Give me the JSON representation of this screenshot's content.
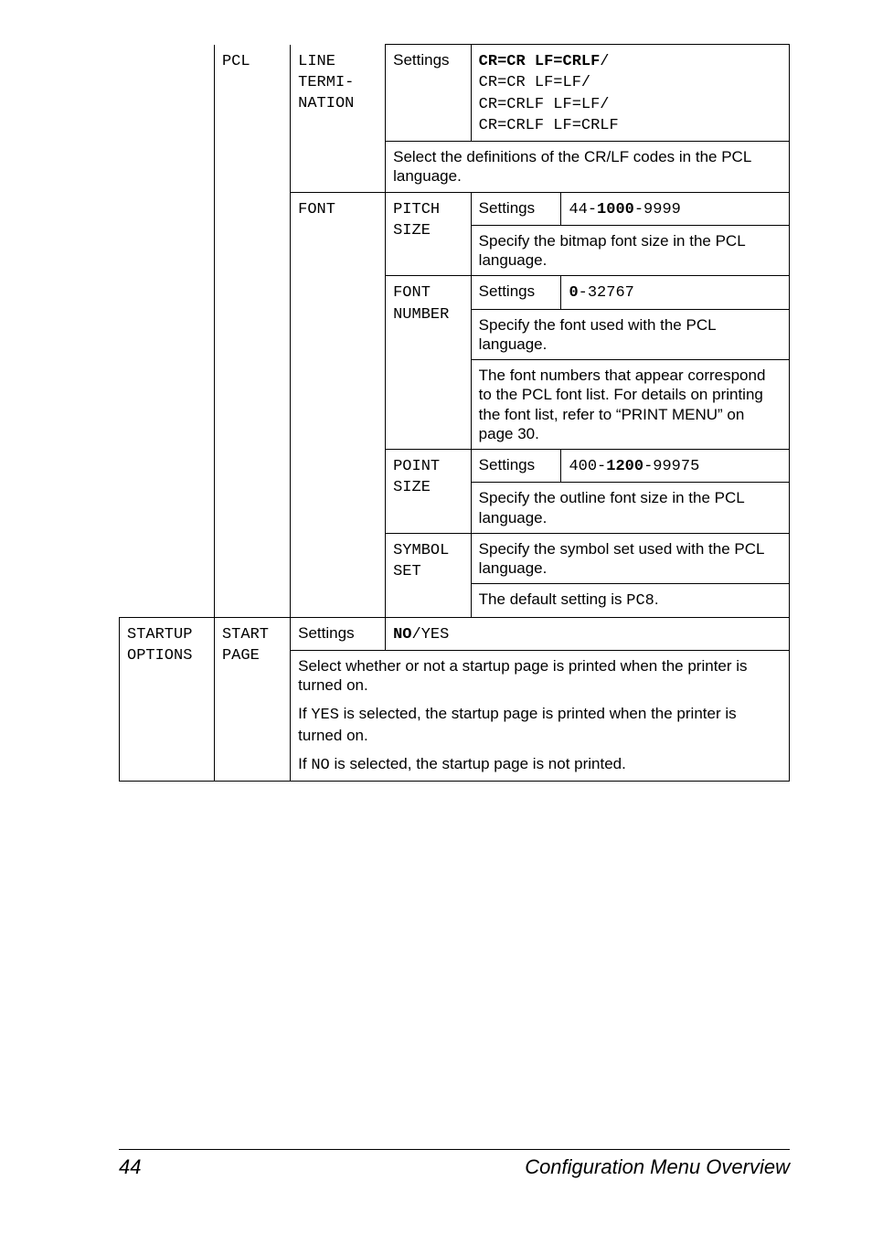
{
  "colors": {
    "text": "#000000",
    "background": "#ffffff",
    "border": "#000000"
  },
  "typography": {
    "body_family": "Arial, Helvetica, sans-serif",
    "mono_family": "Courier New, Courier, monospace",
    "body_size_pt": 13,
    "footer_size_pt": 16
  },
  "table": {
    "col1_label": "",
    "row_pcl": {
      "c2": "PCL",
      "line_term": {
        "c3": "LINE TERMI-NATION",
        "settings_label": "Settings",
        "settings_value": "CR=CR LF=CRLF/ CR=CR LF=LF/ CR=CRLF LF=LF/ CR=CRLF LF=CRLF",
        "settings_value_html": "<span class='bold'>CR=CR LF=CRLF</span>/<br>CR=CR LF=LF/<br>CR=CRLF LF=LF/<br>CR=CRLF LF=CRLF",
        "desc": "Select the definitions of the CR/LF codes in the PCL language."
      },
      "font": {
        "c3": "FONT",
        "pitch_size": {
          "c4": "PITCH SIZE",
          "settings_label": "Settings",
          "settings_value_html": "44-<span class='bold'>1000</span>-9999",
          "desc": "Specify the bitmap font size in the PCL language."
        },
        "font_number": {
          "c4": "FONT NUMBER",
          "settings_label": "Settings",
          "settings_value_html": "<span class='bold'>0</span>-32767",
          "desc1": "Specify the font used with the PCL language.",
          "desc2": "The font numbers that appear correspond to the PCL font list. For details on printing the font list, refer to “PRINT MENU” on page 30."
        },
        "point_size": {
          "c4": "POINT SIZE",
          "settings_label": "Settings",
          "settings_value_html": "400-<span class='bold'>1200</span>-99975",
          "desc": "Specify the outline font size in the PCL language."
        },
        "symbol_set": {
          "c4": "SYMBOL SET",
          "desc_line1": "Specify the symbol set used with the PCL language.",
          "desc_line2_pre": "The default setting is ",
          "desc_line2_code": "PC8",
          "desc_line2_post": "."
        }
      }
    },
    "row_startup": {
      "c1": "STARTUP OPTIONS",
      "c2": "START PAGE",
      "settings_label": "Settings",
      "settings_value_html": "<span class='bold'>NO</span>/YES",
      "desc_p1_pre": "Select whether or not a startup page is printed when the printer is turned on.",
      "desc_p2_pre": "If ",
      "desc_p2_code": "YES",
      "desc_p2_post": " is selected, the startup page is printed when the printer is turned on.",
      "desc_p3_pre": "If ",
      "desc_p3_code": "NO",
      "desc_p3_post": " is selected, the startup page is not printed."
    }
  },
  "footer": {
    "page_number": "44",
    "title": "Configuration Menu Overview"
  }
}
